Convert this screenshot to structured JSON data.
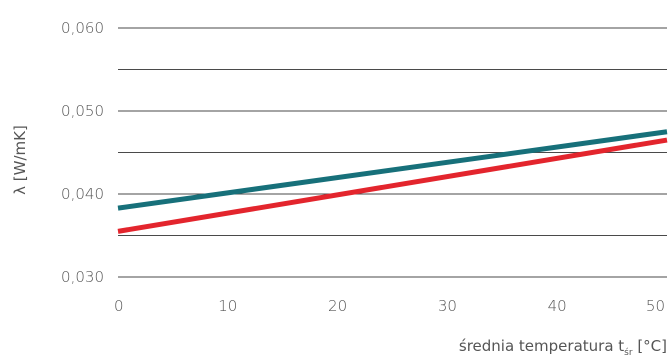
{
  "chart_data": {
    "type": "line",
    "xlabel": "średnia temperatura t",
    "xlabel_sub": "śr",
    "xlabel_unit": " [°C]",
    "ylabel": "λ [W/mK]",
    "xlim": [
      0,
      50
    ],
    "ylim": [
      0.03,
      0.06
    ],
    "x_ticks": [
      "0",
      "10",
      "20",
      "30",
      "40",
      "50"
    ],
    "y_ticks": [
      "0,030",
      "0,040",
      "0,050",
      "0,060"
    ],
    "grid": true,
    "series": [
      {
        "color": "#17707a",
        "points": [
          [
            0,
            0.0383
          ],
          [
            50,
            0.0475
          ]
        ]
      },
      {
        "color": "#e3252d",
        "points": [
          [
            0,
            0.0355
          ],
          [
            50,
            0.0465
          ]
        ]
      }
    ]
  }
}
